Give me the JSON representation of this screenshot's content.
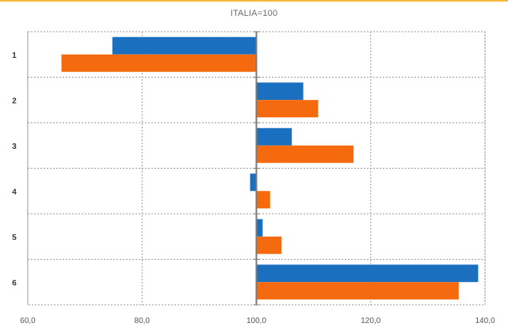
{
  "chart_data": {
    "type": "bar",
    "orientation": "horizontal",
    "title": "ITALIA=100",
    "xlabel": "",
    "ylabel": "",
    "categories": [
      "1",
      "2",
      "3",
      "4",
      "5",
      "6"
    ],
    "xlim": [
      60,
      140
    ],
    "xticks": [
      "60,0",
      "80,0",
      "100,0",
      "120,0",
      "140,0"
    ],
    "baseline": 100,
    "grid": true,
    "legend": "none",
    "series": [
      {
        "color": "#1a6fbf",
        "values": [
          74.8,
          108.2,
          106.2,
          98.9,
          101.1,
          138.8
        ]
      },
      {
        "color": "#f56a0e",
        "values": [
          65.9,
          110.8,
          117.0,
          102.4,
          104.4,
          135.4
        ]
      }
    ]
  }
}
